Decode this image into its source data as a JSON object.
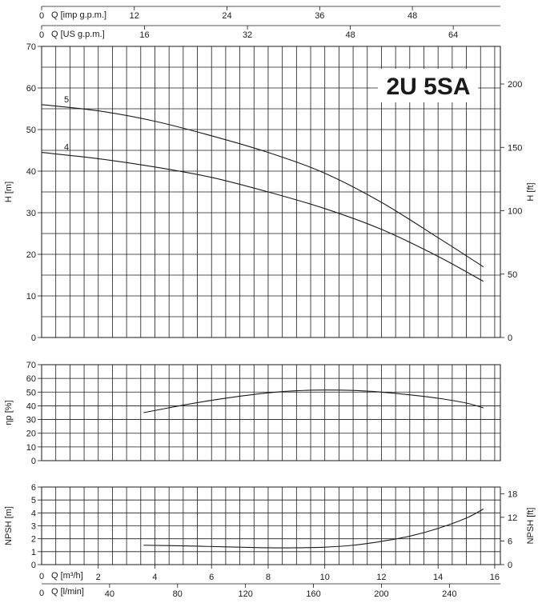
{
  "chart_data": {
    "type": "line",
    "title": "2U 5SA",
    "top_axes": [
      {
        "prefix": "0",
        "label": "Q [imp g.p.m.]",
        "ticks": [
          12,
          24,
          36,
          48
        ]
      },
      {
        "prefix": "0",
        "label": "Q [US g.p.m.]",
        "ticks": [
          16,
          32,
          48,
          64
        ]
      }
    ],
    "bottom_axes": [
      {
        "prefix": "0",
        "label": "Q [m³/h]",
        "ticks": [
          2,
          4,
          6,
          8,
          10,
          12,
          14,
          16
        ]
      },
      {
        "prefix": "0",
        "label": "Q [l/min]",
        "ticks": [
          40,
          80,
          120,
          160,
          200,
          240
        ]
      }
    ],
    "xlim": [
      0,
      16.2
    ],
    "panels": {
      "head": {
        "ylabel": "H [m]",
        "ylim": [
          0,
          70
        ],
        "yticks": [
          0,
          10,
          20,
          30,
          40,
          50,
          60,
          70
        ],
        "y2label": "H [ft]",
        "y2ticks": [
          0,
          50,
          100,
          150,
          200
        ],
        "series": [
          {
            "name": "5",
            "x": [
              0,
              2,
              4,
              6,
              8,
              10,
              12,
              14,
              15.6
            ],
            "y": [
              56,
              54.5,
              52,
              48.5,
              44.5,
              39.5,
              32.5,
              24,
              17
            ]
          },
          {
            "name": "4",
            "x": [
              0,
              2,
              4,
              6,
              8,
              10,
              12,
              14,
              15.6
            ],
            "y": [
              44.5,
              43,
              41,
              38.5,
              35,
              31,
              26,
              19.5,
              13.5
            ]
          }
        ]
      },
      "efficiency": {
        "ylabel": "ηp [%]",
        "ylim": [
          0,
          70
        ],
        "yticks": [
          0,
          10,
          20,
          30,
          40,
          50,
          60,
          70
        ],
        "series": [
          {
            "x": [
              3.6,
              5,
              6,
              7,
              8,
              9,
              10,
              11,
              12,
              13,
              14,
              15,
              15.6
            ],
            "y": [
              35,
              40.5,
              44,
              47,
              49.5,
              51,
              51.5,
              51.2,
              50,
              48,
              45.5,
              42,
              38.5
            ]
          }
        ]
      },
      "npsh": {
        "ylabel": "NPSH [m]",
        "ylim": [
          0,
          6
        ],
        "yticks": [
          0,
          1,
          2,
          3,
          4,
          5,
          6
        ],
        "y2label": "NPSH [ft]",
        "y2ticks": [
          0,
          6,
          12,
          18
        ],
        "series": [
          {
            "x": [
              3.6,
              5,
              6,
              7,
              8,
              9,
              10,
              11,
              12,
              13,
              14,
              15,
              15.6
            ],
            "y": [
              1.5,
              1.45,
              1.4,
              1.35,
              1.3,
              1.3,
              1.35,
              1.5,
              1.8,
              2.2,
              2.8,
              3.6,
              4.3
            ]
          }
        ]
      }
    }
  }
}
